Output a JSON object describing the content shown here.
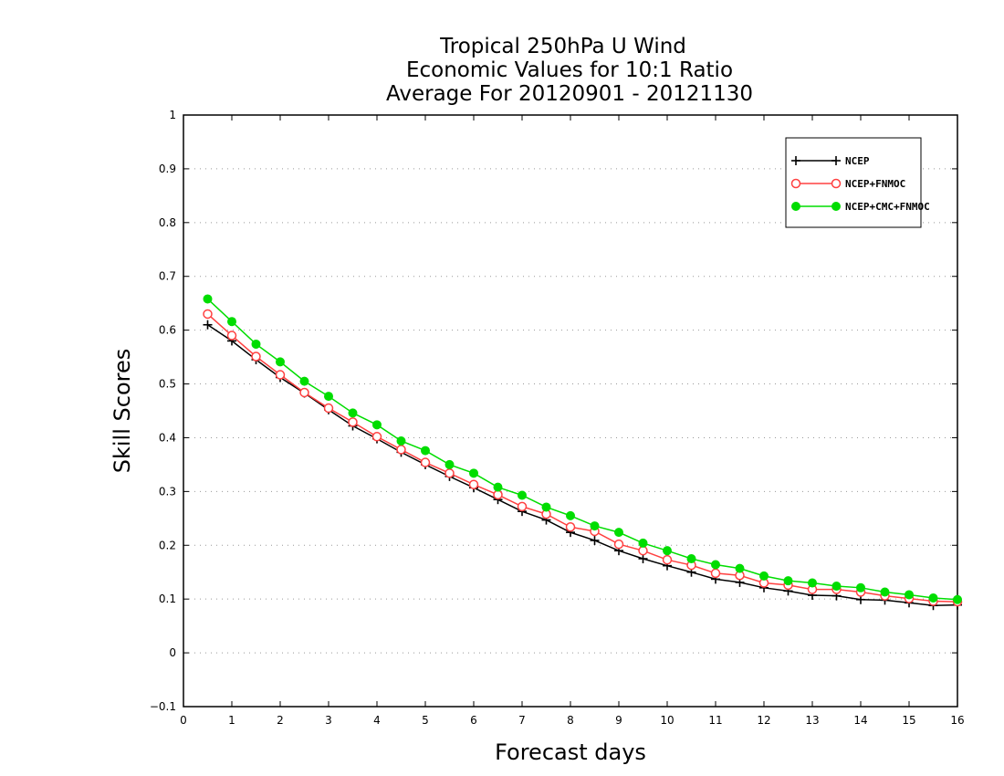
{
  "chart_data": {
    "type": "line",
    "title_lines": [
      "Tropical 250hPa U Wind",
      "Economic Values for 10:1 Ratio",
      "Average For 20120901 - 20121130"
    ],
    "xlabel": "Forecast days",
    "ylabel": "Skill Scores",
    "xlim": [
      0,
      16
    ],
    "ylim": [
      -0.1,
      1
    ],
    "x_ticks": [
      "0",
      "1",
      "2",
      "3",
      "4",
      "5",
      "6",
      "7",
      "8",
      "9",
      "10",
      "11",
      "12",
      "13",
      "14",
      "15",
      "16"
    ],
    "y_ticks": [
      "−0.1",
      "0",
      "0.1",
      "0.2",
      "0.3",
      "0.4",
      "0.5",
      "0.6",
      "0.7",
      "0.8",
      "0.9",
      "1"
    ],
    "grid": "horizontal dotted",
    "legend_position": "top-right",
    "x": [
      0.5,
      1,
      1.5,
      2,
      2.5,
      3,
      3.5,
      4,
      4.5,
      5,
      5.5,
      6,
      6.5,
      7,
      7.5,
      8,
      8.5,
      9,
      9.5,
      10,
      10.5,
      11,
      11.5,
      12,
      12.5,
      13,
      13.5,
      14,
      14.5,
      15,
      15.5,
      16
    ],
    "series": [
      {
        "name": "NCEP",
        "color": "#000000",
        "marker": "plus",
        "values": [
          0.61,
          0.58,
          0.545,
          0.512,
          0.483,
          0.452,
          0.422,
          0.398,
          0.373,
          0.35,
          0.328,
          0.307,
          0.285,
          0.263,
          0.247,
          0.224,
          0.209,
          0.19,
          0.175,
          0.162,
          0.15,
          0.137,
          0.131,
          0.121,
          0.115,
          0.107,
          0.106,
          0.099,
          0.098,
          0.093,
          0.088,
          0.089
        ]
      },
      {
        "name": "NCEP+FNMOC",
        "color": "#ff4040",
        "marker": "open-circle",
        "values": [
          0.63,
          0.59,
          0.551,
          0.517,
          0.484,
          0.455,
          0.429,
          0.402,
          0.378,
          0.354,
          0.334,
          0.313,
          0.294,
          0.272,
          0.258,
          0.234,
          0.226,
          0.202,
          0.19,
          0.173,
          0.163,
          0.148,
          0.144,
          0.13,
          0.126,
          0.118,
          0.118,
          0.113,
          0.106,
          0.101,
          0.096,
          0.095
        ]
      },
      {
        "name": "NCEP+CMC+FNMOC",
        "color": "#00dd00",
        "marker": "filled-circle",
        "values": [
          0.658,
          0.616,
          0.574,
          0.541,
          0.505,
          0.477,
          0.446,
          0.424,
          0.394,
          0.376,
          0.35,
          0.334,
          0.308,
          0.293,
          0.271,
          0.255,
          0.236,
          0.224,
          0.204,
          0.19,
          0.175,
          0.164,
          0.157,
          0.143,
          0.134,
          0.13,
          0.124,
          0.121,
          0.113,
          0.108,
          0.102,
          0.099
        ]
      }
    ]
  }
}
